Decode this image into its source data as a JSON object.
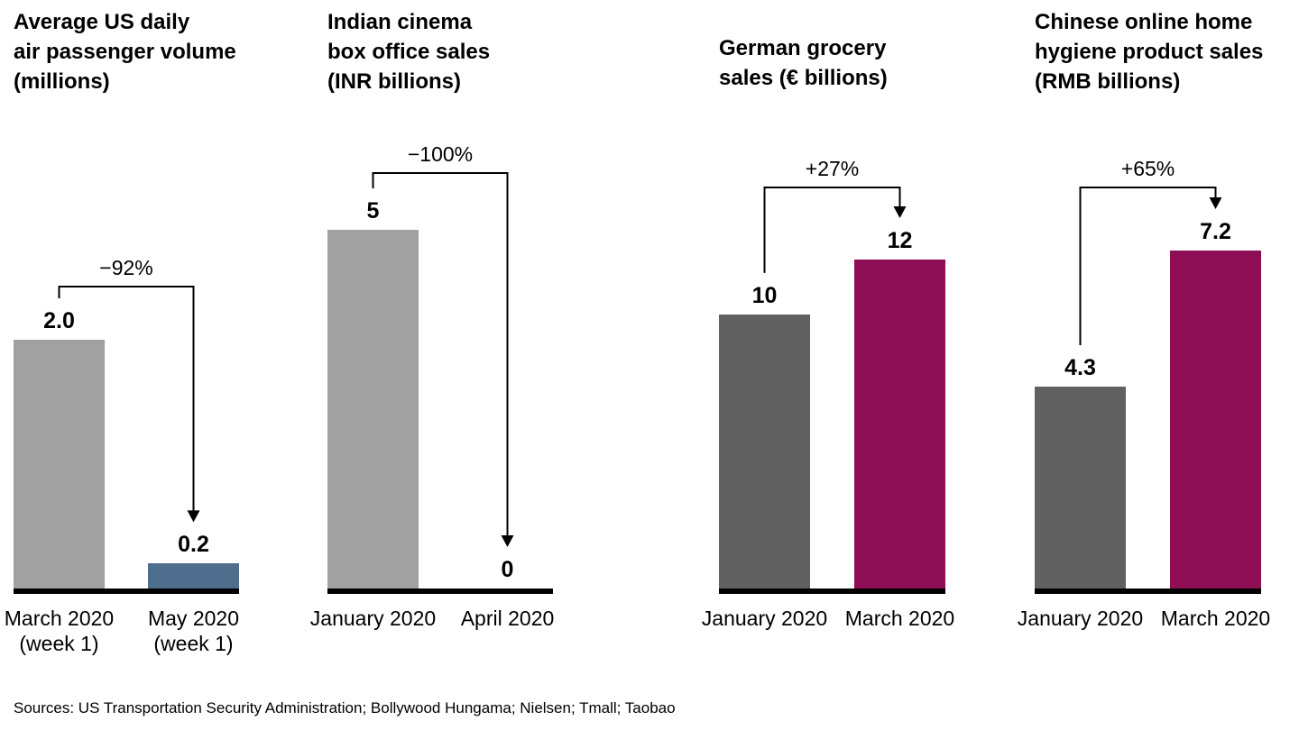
{
  "footer": {
    "sources": "Sources: US Transportation Security Administration; Bollywood Hungama; Nielsen; Tmall; Taobao"
  },
  "chart_data": [
    {
      "type": "bar",
      "title": "Average US daily\nair passenger volume\n(millions)",
      "categories": [
        "March 2020\n(week 1)",
        "May 2020\n(week 1)"
      ],
      "values": [
        2.0,
        0.2
      ],
      "value_labels": [
        "2.0",
        "0.2"
      ],
      "change_label": "−92%",
      "bar_colors": [
        "#a1a1a1",
        "#4f6d8c"
      ],
      "xlabel": "",
      "ylabel": "",
      "grid": false,
      "legend": false
    },
    {
      "type": "bar",
      "title": "Indian cinema\nbox office sales\n(INR billions)",
      "categories": [
        "January 2020",
        "April 2020"
      ],
      "values": [
        5,
        0
      ],
      "value_labels": [
        "5",
        "0"
      ],
      "change_label": "−100%",
      "bar_colors": [
        "#a1a1a1",
        "#a1a1a1"
      ],
      "xlabel": "",
      "ylabel": "",
      "grid": false,
      "legend": false
    },
    {
      "type": "bar",
      "title": "German grocery\nsales (€ billions)",
      "categories": [
        "January 2020",
        "March 2020"
      ],
      "values": [
        10,
        12
      ],
      "value_labels": [
        "10",
        "12"
      ],
      "change_label": "+27%",
      "bar_colors": [
        "#616161",
        "#8e0e56"
      ],
      "xlabel": "",
      "ylabel": "",
      "grid": false,
      "legend": false
    },
    {
      "type": "bar",
      "title": "Chinese online home\nhygiene product sales\n(RMB billions)",
      "categories": [
        "January 2020",
        "March 2020"
      ],
      "values": [
        4.3,
        7.2
      ],
      "value_labels": [
        "4.3",
        "7.2"
      ],
      "change_label": "+65%",
      "bar_colors": [
        "#616161",
        "#8e0e56"
      ],
      "xlabel": "",
      "ylabel": "",
      "grid": false,
      "legend": false
    }
  ]
}
